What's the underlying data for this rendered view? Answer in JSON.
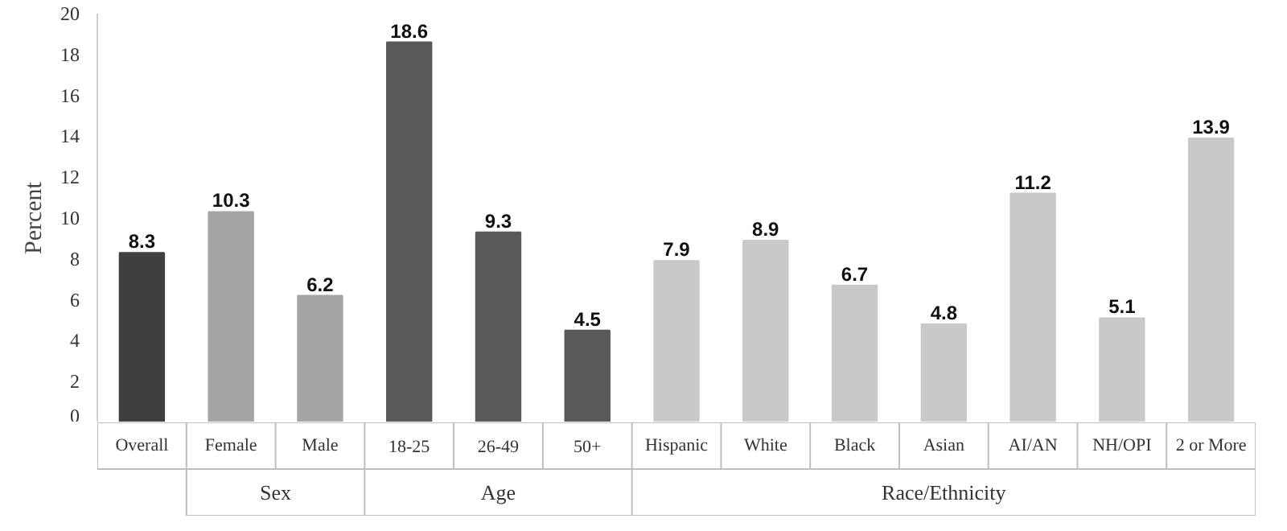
{
  "chart_data": {
    "type": "bar",
    "ylabel": "Percent",
    "categories": [
      "Overall",
      "Female",
      "Male",
      "18-25",
      "26-49",
      "50+",
      "Hispanic",
      "White",
      "Black",
      "Asian",
      "AI/AN",
      "NH/OPI",
      "2 or More"
    ],
    "series": [
      {
        "color": "#3f3f3f",
        "values": [
          8.3,
          null,
          null,
          null,
          null,
          null,
          null,
          null,
          null,
          null,
          null,
          null,
          null
        ]
      },
      {
        "color": "#a5a5a5",
        "values": [
          null,
          10.3,
          6.2,
          null,
          null,
          null,
          null,
          null,
          null,
          null,
          null,
          null,
          null
        ]
      },
      {
        "color": "#595959",
        "values": [
          null,
          null,
          null,
          18.6,
          9.3,
          4.5,
          null,
          null,
          null,
          null,
          null,
          null,
          null
        ]
      },
      {
        "color": "#c9c9c9",
        "values": [
          null,
          null,
          null,
          null,
          null,
          null,
          7.9,
          8.9,
          6.7,
          4.8,
          11.2,
          5.1,
          13.9
        ]
      }
    ],
    "annotations": [
      "Sex",
      "Age",
      "Race/Ethnicity"
    ],
    "ylim": [
      0,
      20
    ],
    "yticks": [
      0,
      2,
      4,
      6,
      8,
      10,
      12,
      14,
      16,
      18,
      20
    ],
    "data_labels": true
  }
}
